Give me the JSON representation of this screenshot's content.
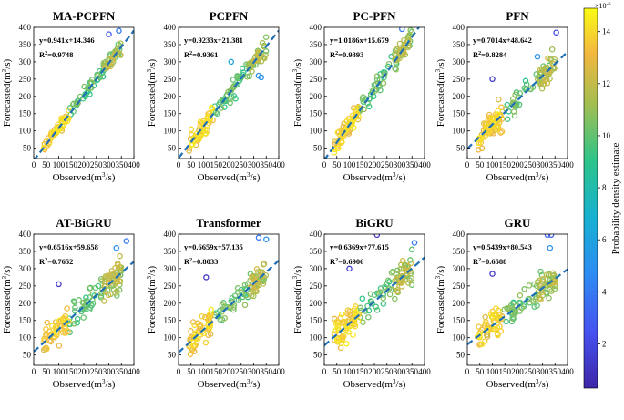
{
  "colors": {
    "axis": "#000000",
    "fit_line": "#1f6fb5"
  },
  "colorbar": {
    "label": "Probability density estimate",
    "exponent": "×10",
    "exponent_power": "-6",
    "range": [
      0.3,
      14.9
    ],
    "ticks": [
      "2",
      "4",
      "6",
      "8",
      "10",
      "12",
      "14"
    ],
    "tick_values": [
      2,
      4,
      6,
      8,
      10,
      12,
      14
    ],
    "colormap": "parula"
  },
  "chart_data": [
    {
      "type": "scatter",
      "title": "MA-PCPFN",
      "equation": "y=0.941x+14.346",
      "r2_label": "R",
      "r2_sup": "2",
      "r2_value": "=0.9748",
      "slope": 0.941,
      "intercept": 14.346,
      "xlabel": "Observed",
      "ylabel": "Forecasted",
      "unit": "(m",
      "unit_sup": "3",
      "unit_end": "/s)",
      "xlim": [
        0,
        400
      ],
      "ylim": [
        20,
        400
      ],
      "xticks": [
        "0",
        "50",
        "100",
        "150",
        "200",
        "250",
        "300",
        "350",
        "400"
      ],
      "yticks": [
        "50",
        "100",
        "150",
        "200",
        "250",
        "300",
        "350",
        "400"
      ],
      "scatter_profile": {
        "points": 150,
        "noise": 14,
        "outliers": [
          [
            300,
            380,
            3
          ],
          [
            340,
            390,
            4
          ]
        ]
      }
    },
    {
      "type": "scatter",
      "title": "PCPFN",
      "equation": "y=0.9233x+21.381",
      "r2_label": "R",
      "r2_sup": "2",
      "r2_value": "=0.9361",
      "slope": 0.9233,
      "intercept": 21.381,
      "xlabel": "Observed",
      "ylabel": "Forecasted",
      "unit": "(m",
      "unit_sup": "3",
      "unit_end": "/s)",
      "xlim": [
        0,
        400
      ],
      "ylim": [
        20,
        400
      ],
      "xticks": [
        "0",
        "50",
        "100",
        "150",
        "200",
        "250",
        "300",
        "350",
        "400"
      ],
      "yticks": [
        "50",
        "100",
        "150",
        "200",
        "250",
        "300",
        "350",
        "400"
      ],
      "scatter_profile": {
        "points": 150,
        "noise": 22,
        "outliers": [
          [
            320,
            260,
            5
          ],
          [
            330,
            255,
            5
          ],
          [
            210,
            300,
            6
          ]
        ]
      }
    },
    {
      "type": "scatter",
      "title": "PC-PFN",
      "equation": "y=1.0186x+15.679",
      "r2_label": "R",
      "r2_sup": "2",
      "r2_value": "=0.9393",
      "slope": 1.0186,
      "intercept": 15.679,
      "xlabel": "Observed",
      "ylabel": "Forecasted",
      "unit": "(m",
      "unit_sup": "3",
      "unit_end": "/s)",
      "xlim": [
        0,
        400
      ],
      "ylim": [
        20,
        400
      ],
      "xticks": [
        "0",
        "50",
        "100",
        "150",
        "200",
        "250",
        "300",
        "350",
        "400"
      ],
      "yticks": [
        "50",
        "100",
        "150",
        "200",
        "250",
        "300",
        "350",
        "400"
      ],
      "scatter_profile": {
        "points": 150,
        "noise": 22,
        "outliers": [
          [
            310,
            395,
            4
          ]
        ]
      }
    },
    {
      "type": "scatter",
      "title": "PFN",
      "equation": "y=0.7014x+48.642",
      "r2_label": "R",
      "r2_sup": "2",
      "r2_value": "=0.8284",
      "slope": 0.7014,
      "intercept": 48.642,
      "xlabel": "Observed",
      "ylabel": "Forecasted",
      "unit": "(m",
      "unit_sup": "3",
      "unit_end": "/s)",
      "xlim": [
        0,
        400
      ],
      "ylim": [
        20,
        400
      ],
      "xticks": [
        "0",
        "50",
        "100",
        "150",
        "200",
        "250",
        "300",
        "350",
        "400"
      ],
      "yticks": [
        "50",
        "100",
        "150",
        "200",
        "250",
        "300",
        "350",
        "400"
      ],
      "scatter_profile": {
        "points": 150,
        "noise": 28,
        "outliers": [
          [
            100,
            250,
            1.2
          ],
          [
            355,
            385,
            2
          ],
          [
            280,
            315,
            5
          ]
        ]
      }
    },
    {
      "type": "scatter",
      "title": "AT-BiGRU",
      "equation": "y=0.6516x+59.658",
      "r2_label": "R",
      "r2_sup": "2",
      "r2_value": "=0.7652",
      "slope": 0.6516,
      "intercept": 59.658,
      "xlabel": "Observed",
      "ylabel": "Forecasted",
      "unit": "(m",
      "unit_sup": "3",
      "unit_end": "/s)",
      "xlim": [
        0,
        400
      ],
      "ylim": [
        20,
        400
      ],
      "xticks": [
        "0",
        "50",
        "100",
        "150",
        "200",
        "250",
        "300",
        "350",
        "400"
      ],
      "yticks": [
        "50",
        "100",
        "150",
        "200",
        "250",
        "300",
        "350",
        "400"
      ],
      "scatter_profile": {
        "points": 150,
        "noise": 30,
        "outliers": [
          [
            100,
            255,
            1.2
          ],
          [
            370,
            380,
            4
          ],
          [
            330,
            360,
            5
          ]
        ]
      }
    },
    {
      "type": "scatter",
      "title": "Transformer",
      "equation": "y=0.6659x+57.135",
      "r2_label": "R",
      "r2_sup": "2",
      "r2_value": "=0.8033",
      "slope": 0.6659,
      "intercept": 57.135,
      "xlabel": "Observed",
      "ylabel": "Forecasted",
      "unit": "(m",
      "unit_sup": "3",
      "unit_end": "/s)",
      "xlim": [
        0,
        400
      ],
      "ylim": [
        20,
        400
      ],
      "xticks": [
        "0",
        "50",
        "100",
        "150",
        "200",
        "250",
        "300",
        "350",
        "400"
      ],
      "yticks": [
        "50",
        "100",
        "150",
        "200",
        "250",
        "300",
        "350",
        "400"
      ],
      "scatter_profile": {
        "points": 150,
        "noise": 26,
        "outliers": [
          [
            110,
            275,
            1.2
          ],
          [
            320,
            390,
            4
          ],
          [
            350,
            385,
            5
          ]
        ]
      }
    },
    {
      "type": "scatter",
      "title": "BiGRU",
      "equation": "y=0.6369x+77.615",
      "r2_label": "R",
      "r2_sup": "2",
      "r2_value": "=0.6906",
      "slope": 0.6369,
      "intercept": 77.615,
      "xlabel": "Observed",
      "ylabel": "Forecasted",
      "unit": "(m",
      "unit_sup": "3",
      "unit_end": "/s)",
      "xlim": [
        0,
        400
      ],
      "ylim": [
        20,
        400
      ],
      "xticks": [
        "0",
        "50",
        "100",
        "150",
        "200",
        "250",
        "300",
        "350",
        "400"
      ],
      "yticks": [
        "50",
        "100",
        "150",
        "200",
        "250",
        "300",
        "350",
        "400"
      ],
      "scatter_profile": {
        "points": 150,
        "noise": 32,
        "outliers": [
          [
            210,
            398,
            1.2
          ],
          [
            100,
            300,
            1.5
          ],
          [
            360,
            375,
            4
          ]
        ]
      }
    },
    {
      "type": "scatter",
      "title": "GRU",
      "equation": "y=0.5439x+80.543",
      "r2_label": "R",
      "r2_sup": "2",
      "r2_value": "=0.6588",
      "slope": 0.5439,
      "intercept": 80.543,
      "xlabel": "Observed",
      "ylabel": "Forecasted",
      "unit": "(m",
      "unit_sup": "3",
      "unit_end": "/s)",
      "xlim": [
        0,
        400
      ],
      "ylim": [
        20,
        400
      ],
      "xticks": [
        "0",
        "50",
        "100",
        "150",
        "200",
        "250",
        "300",
        "350",
        "400"
      ],
      "yticks": [
        "50",
        "100",
        "150",
        "200",
        "250",
        "300",
        "350",
        "400"
      ],
      "scatter_profile": {
        "points": 150,
        "noise": 30,
        "outliers": [
          [
            320,
            398,
            3
          ],
          [
            335,
            398,
            3
          ],
          [
            100,
            285,
            1.2
          ],
          [
            330,
            360,
            5
          ]
        ]
      }
    }
  ]
}
